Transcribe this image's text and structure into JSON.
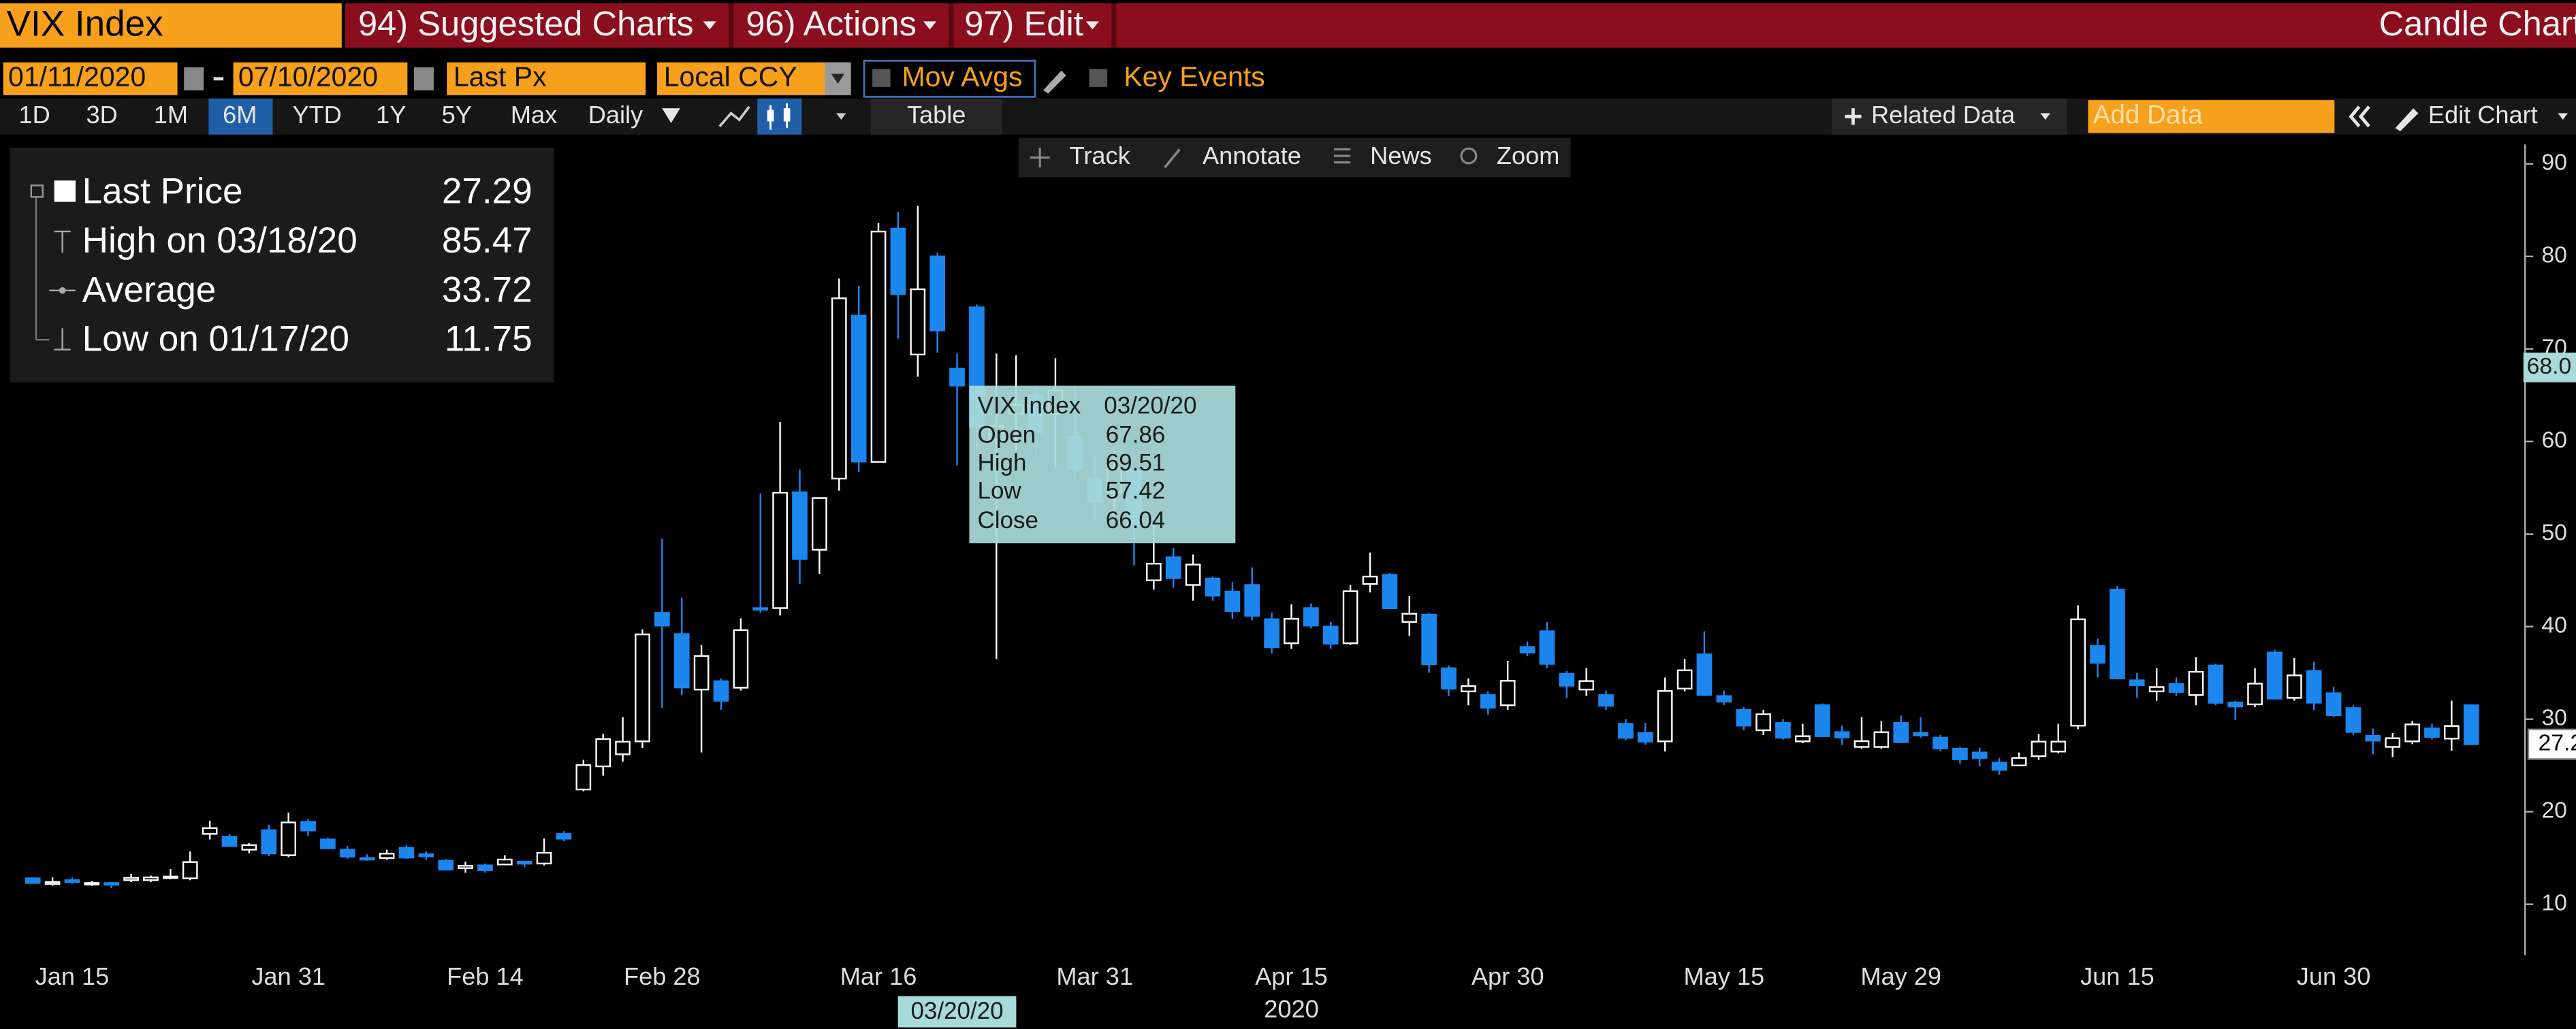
{
  "ui": {
    "ticker": "VIX Index",
    "menu": [
      "94) Suggested Charts",
      "96) Actions",
      "97) Edit"
    ],
    "chart_kind": "Candle Chart",
    "start_date": "01/11/2020",
    "end_date": "07/10/2020",
    "field": "Last Px",
    "currency": "Local CCY",
    "mov_avgs": "Mov Avgs",
    "key_events": "Key Events",
    "periods": [
      "1D",
      "3D",
      "1M",
      "6M",
      "YTD",
      "1Y",
      "5Y",
      "Max"
    ],
    "frequency": "Daily",
    "table": "Table",
    "related_data": "Related Data",
    "add_data": "Add Data",
    "edit_chart": "Edit Chart",
    "tools": [
      "Track",
      "Annotate",
      "News",
      "Zoom"
    ],
    "legend": {
      "labels": [
        "Last Price",
        "High on 03/18/20",
        "Average",
        "Low on 01/17/20"
      ],
      "average": 33.72
    },
    "tooltip_labels": [
      "Open",
      "High",
      "Low",
      "Close"
    ]
  },
  "chart_data": {
    "type": "candlestick",
    "title": "VIX Index",
    "up_color": "#ffffff",
    "down_color": "#1a86ee",
    "categories": [
      null,
      null,
      "Jan 15",
      null,
      null,
      null,
      null,
      null,
      null,
      null,
      null,
      null,
      null,
      "Jan 31",
      null,
      null,
      null,
      null,
      null,
      null,
      null,
      null,
      null,
      "Feb 14",
      null,
      null,
      null,
      null,
      null,
      null,
      null,
      null,
      "Feb 28",
      null,
      null,
      null,
      null,
      null,
      null,
      null,
      null,
      null,
      null,
      "Mar 16",
      null,
      null,
      null,
      null,
      null,
      null,
      null,
      null,
      null,
      null,
      "Mar 31",
      null,
      null,
      null,
      null,
      null,
      null,
      null,
      null,
      null,
      "Apr 15",
      null,
      null,
      null,
      null,
      null,
      null,
      null,
      null,
      null,
      null,
      "Apr 30",
      null,
      null,
      null,
      null,
      null,
      null,
      null,
      null,
      null,
      null,
      "May 15",
      null,
      null,
      null,
      null,
      null,
      null,
      null,
      null,
      "May 29",
      null,
      null,
      null,
      null,
      null,
      null,
      null,
      null,
      null,
      null,
      "Jun 15",
      null,
      null,
      null,
      null,
      null,
      null,
      null,
      null,
      null,
      null,
      "Jun 30",
      null,
      null,
      null,
      null,
      null,
      null,
      null
    ],
    "year_label": "2020",
    "cursor_date": "03/20/20",
    "cursor_price": {
      "value": 68,
      "label": "68.0"
    },
    "open": [
      12.8,
      12.2,
      12.6,
      12.2,
      12.3,
      12.6,
      12.6,
      12.9,
      12.8,
      17.6,
      17.3,
      15.9,
      18.0,
      15.3,
      18.9,
      17.0,
      15.9,
      15.0,
      15.0,
      16.1,
      15.4,
      14.7,
      13.9,
      14.2,
      14.3,
      14.6,
      14.4,
      17.6,
      22.4,
      24.9,
      26.2,
      27.6,
      41.5,
      39.2,
      33.2,
      34.1,
      33.4,
      42.0,
      42.0,
      54.5,
      48.3,
      56.0,
      73.6,
      57.8,
      83.0,
      69.4,
      80.0,
      67.86,
      74.5,
      60.2,
      63.0,
      65.0,
      63.0,
      60.5,
      56.0,
      54.5,
      56.8,
      45.0,
      47.5,
      44.5,
      45.2,
      43.8,
      44.5,
      40.8,
      38.2,
      42.0,
      40.0,
      38.2,
      44.6,
      45.6,
      40.5,
      41.3,
      35.5,
      33.0,
      32.6,
      31.5,
      37.8,
      39.5,
      34.9,
      33.2,
      32.6,
      29.5,
      28.5,
      27.6,
      33.3,
      37.0,
      32.5,
      31.0,
      28.8,
      29.6,
      27.6,
      31.5,
      28.6,
      27.0,
      27.0,
      29.6,
      28.5,
      28.0,
      26.8,
      26.4,
      25.3,
      25.0,
      26.0,
      26.5,
      29.3,
      37.9,
      44.0,
      34.2,
      33.0,
      33.8,
      32.6,
      35.8,
      31.8,
      31.6,
      37.2,
      32.3,
      35.2,
      32.8,
      31.2,
      28.2,
      27.0,
      27.6,
      29.0,
      27.9,
      31.5
    ],
    "high": [
      12.9,
      12.9,
      12.9,
      12.5,
      12.4,
      13.3,
      13.1,
      13.8,
      15.7,
      19.0,
      17.6,
      16.6,
      18.6,
      19.9,
      19.2,
      17.2,
      16.3,
      15.4,
      15.9,
      16.4,
      15.7,
      14.9,
      14.6,
      14.4,
      15.3,
      14.7,
      17.1,
      17.9,
      25.6,
      28.4,
      30.2,
      39.7,
      49.5,
      43.1,
      38.0,
      34.4,
      40.9,
      54.4,
      62.1,
      57.0,
      54.0,
      77.6,
      76.8,
      83.6,
      84.8,
      85.47,
      80.4,
      69.51,
      74.8,
      69.5,
      69.3,
      66.0,
      69.0,
      66.0,
      58.5,
      59.0,
      57.0,
      51.8,
      48.5,
      47.8,
      45.4,
      44.8,
      46.4,
      41.5,
      42.4,
      42.5,
      40.5,
      44.5,
      48.0,
      45.8,
      43.3,
      41.5,
      35.8,
      34.4,
      33.0,
      36.3,
      38.4,
      40.5,
      35.2,
      35.5,
      33.1,
      30.0,
      29.6,
      34.5,
      36.5,
      39.5,
      33.1,
      31.3,
      31.0,
      30.0,
      29.5,
      31.7,
      29.3,
      30.2,
      29.8,
      30.4,
      30.2,
      28.3,
      27.0,
      26.9,
      25.8,
      26.4,
      28.4,
      29.5,
      42.3,
      38.7,
      44.4,
      35.0,
      35.5,
      34.5,
      36.7,
      36.0,
      32.0,
      35.5,
      37.5,
      36.6,
      36.2,
      33.5,
      31.5,
      29.0,
      28.5,
      29.8,
      29.5,
      32.0,
      31.6
    ],
    "low": [
      12.3,
      12.0,
      12.2,
      12.0,
      11.75,
      12.4,
      12.4,
      12.7,
      12.6,
      17.0,
      16.2,
      15.5,
      15.2,
      15.1,
      17.4,
      16.0,
      14.9,
      14.7,
      14.8,
      14.9,
      14.8,
      13.7,
      13.4,
      13.4,
      14.2,
      14.0,
      14.2,
      16.8,
      22.2,
      23.9,
      25.4,
      26.9,
      31.2,
      32.6,
      26.4,
      31.0,
      33.1,
      41.5,
      41.2,
      44.6,
      45.7,
      54.7,
      56.7,
      57.8,
      71.1,
      67.0,
      69.6,
      57.42,
      59.2,
      36.5,
      59.1,
      58.5,
      57.2,
      56.0,
      51.6,
      52.0,
      46.6,
      44.0,
      44.2,
      42.8,
      42.8,
      40.8,
      40.7,
      37.1,
      37.6,
      39.8,
      37.6,
      38.0,
      43.7,
      41.9,
      39.0,
      35.0,
      32.5,
      31.5,
      30.5,
      31.0,
      36.8,
      35.5,
      32.3,
      32.5,
      31.0,
      27.7,
      27.2,
      26.5,
      33.0,
      32.5,
      31.5,
      28.8,
      28.3,
      27.8,
      27.4,
      28.1,
      27.2,
      26.8,
      26.8,
      27.5,
      28.0,
      26.5,
      25.2,
      24.9,
      24.0,
      24.9,
      25.6,
      26.3,
      28.9,
      34.5,
      34.3,
      32.3,
      32.0,
      32.5,
      31.5,
      31.5,
      29.9,
      31.3,
      32.1,
      32.0,
      31.0,
      30.2,
      28.3,
      26.2,
      25.9,
      27.3,
      27.8,
      26.6,
      27.2
    ],
    "close": [
      12.3,
      12.4,
      12.4,
      12.3,
      12.1,
      12.85,
      12.9,
      13.0,
      14.56,
      18.23,
      16.28,
      16.39,
      15.49,
      18.84,
      17.97,
      16.05,
      15.15,
      14.96,
      15.47,
      15.04,
      15.18,
      13.74,
      14.15,
      13.68,
      14.83,
      14.38,
      15.56,
      17.08,
      25.03,
      27.85,
      27.56,
      39.16,
      40.11,
      33.42,
      36.82,
      31.99,
      39.62,
      41.94,
      54.46,
      47.3,
      53.9,
      75.47,
      57.83,
      82.69,
      75.91,
      76.45,
      72.0,
      66.04,
      61.59,
      61.67,
      63.95,
      61.0,
      65.54,
      57.08,
      53.54,
      57.06,
      50.91,
      46.8,
      45.24,
      46.7,
      43.35,
      41.67,
      41.17,
      37.76,
      40.84,
      40.11,
      38.15,
      43.83,
      45.41,
      41.98,
      41.38,
      35.93,
      33.29,
      33.57,
      31.23,
      34.15,
      37.19,
      35.97,
      33.61,
      34.12,
      31.44,
      27.98,
      27.57,
      33.04,
      35.28,
      32.61,
      31.89,
      29.3,
      30.53,
      27.99,
      28.16,
      28.16,
      28.01,
      27.62,
      28.59,
      27.51,
      28.23,
      26.84,
      25.66,
      25.81,
      24.52,
      25.81,
      27.57,
      27.57,
      40.79,
      36.09,
      34.4,
      33.67,
      33.47,
      32.94,
      35.12,
      31.77,
      31.37,
      33.84,
      32.22,
      34.73,
      31.78,
      30.43,
      28.62,
      27.68,
      27.94,
      29.43,
      28.08,
      29.26,
      27.29
    ],
    "ylim": [
      4.5,
      92.1
    ],
    "yticks": [
      10,
      20,
      30,
      40,
      50,
      60,
      70,
      80,
      90
    ],
    "grid": false
  }
}
